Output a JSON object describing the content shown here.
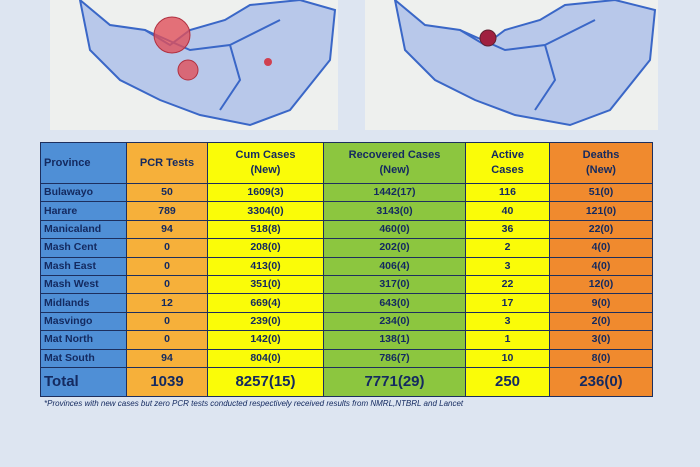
{
  "table": {
    "headers": [
      [
        "Province"
      ],
      [
        "PCR Tests"
      ],
      [
        "Cum Cases",
        "(New)"
      ],
      [
        "Recovered Cases",
        "(New)"
      ],
      [
        "Active",
        "Cases"
      ],
      [
        "Deaths",
        "(New)"
      ]
    ],
    "rows": [
      [
        "Bulawayo",
        "50",
        "1609(3)",
        "1442(17)",
        "116",
        "51(0)"
      ],
      [
        "Harare",
        "789",
        "3304(0)",
        "3143(0)",
        "40",
        "121(0)"
      ],
      [
        "Manicaland",
        "94",
        "518(8)",
        "460(0)",
        "36",
        "22(0)"
      ],
      [
        "Mash Cent",
        "0",
        "208(0)",
        "202(0)",
        "2",
        "4(0)"
      ],
      [
        "Mash East",
        "0",
        "413(0)",
        "406(4)",
        "3",
        "4(0)"
      ],
      [
        "Mash West",
        "0",
        "351(0)",
        "317(0)",
        "22",
        "12(0)"
      ],
      [
        "Midlands",
        "12",
        "669(4)",
        "643(0)",
        "17",
        "9(0)"
      ],
      [
        "Masvingo",
        "0",
        "239(0)",
        "234(0)",
        "3",
        "2(0)"
      ],
      [
        "Mat North",
        "0",
        "142(0)",
        "138(1)",
        "1",
        "3(0)"
      ],
      [
        "Mat South",
        "94",
        "804(0)",
        "786(7)",
        "10",
        "8(0)"
      ]
    ],
    "total": [
      "Total",
      "1039",
      "8257(15)",
      "7771(29)",
      "250",
      "236(0)"
    ]
  },
  "footnote": "*Provinces  with new cases but zero  PCR tests conducted respectively received results from NMRL,NTBRL and Lancet"
}
